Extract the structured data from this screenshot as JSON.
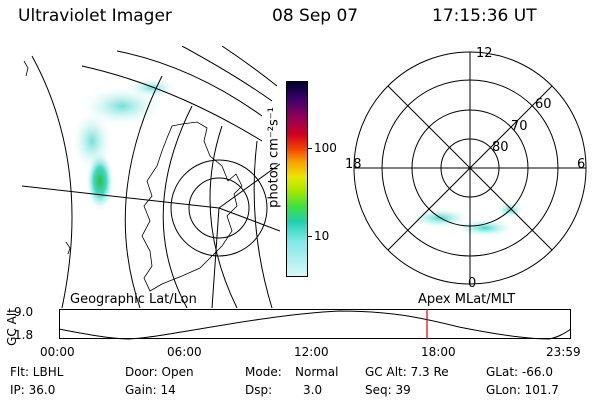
{
  "header": {
    "title": "Ultraviolet Imager",
    "date": "08 Sep 07",
    "time": "17:15:36 UT"
  },
  "colorbar": {
    "label": "photon cm⁻²s⁻¹",
    "ticks": [
      "100",
      "10"
    ]
  },
  "polar": {
    "lat_labels": [
      "80",
      "70",
      "60"
    ],
    "mlt_labels": {
      "top": "12",
      "left": "18",
      "right": "6",
      "bottom": "0"
    }
  },
  "panels": {
    "left_caption": "Geographic Lat/Lon",
    "right_caption": "Apex MLat/MLT"
  },
  "altitude_plot": {
    "ylabel": "GC Alt",
    "yticks": [
      "9.0",
      "1.8"
    ],
    "xticks": [
      "00:00",
      "06:00",
      "12:00",
      "18:00",
      "23:59"
    ],
    "marker_time": "17:15:36"
  },
  "status": {
    "flt": "Flt: LBHL",
    "ip": "IP: 36.0",
    "door": "Door: Open",
    "gain": "Gain: 14",
    "mode_label": "Mode:",
    "mode_value": "Normal",
    "dsp_label": "Dsp:",
    "dsp_value": "3.0",
    "gc_alt": "GC Alt: 7.3 Re",
    "seq": "Seq: 39",
    "glat": "GLat: -66.0",
    "glon": "GLon: 101.7"
  },
  "colors": {
    "marker": "#e00000",
    "aurora_light": "#b8f0f0",
    "aurora_mid": "#40d8c8",
    "aurora_core": "#30c040"
  }
}
